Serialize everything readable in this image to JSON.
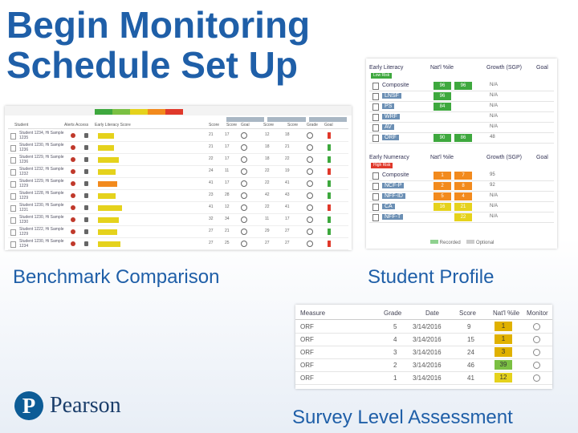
{
  "title_line1": "Begin Monitoring",
  "title_line2": "Schedule Set Up",
  "captions": {
    "benchmark": "Benchmark Comparison",
    "profile": "Student Profile",
    "survey": "Survey Level Assessment"
  },
  "brand": "Pearson",
  "colors": {
    "title": "#1f5fa8",
    "green": "#3ea83e",
    "yellow": "#e5d21c",
    "orange": "#f28a1d",
    "red": "#e0392b"
  },
  "benchmark": {
    "columns": [
      "Student ",
      "Alerts",
      "Access",
      "Early Literacy Score",
      "Score",
      "Score",
      "Goal",
      "Score",
      "Score",
      "Grade",
      "Goal"
    ],
    "rows": [
      {
        "name": "Student 1234, Hi Sample 1235",
        "a": "21",
        "b": "17",
        "c": "12",
        "d": "18"
      },
      {
        "name": "Student 1230, Hi Sample 1236",
        "a": "21",
        "b": "17",
        "c": "18",
        "d": "21"
      },
      {
        "name": "Student 1229, Hi Sample 1236",
        "a": "22",
        "b": "17",
        "c": "18",
        "d": "22"
      },
      {
        "name": "Student 1232, Hi Sample 1232",
        "a": "24",
        "b": "11",
        "c": "22",
        "d": "19"
      },
      {
        "name": "Student 1229, Hi Sample 1229",
        "a": "41",
        "b": "17",
        "c": "22",
        "d": "41"
      },
      {
        "name": "Student 1228, Hi Sample 1229",
        "a": "23",
        "b": "28",
        "c": "42",
        "d": "43"
      },
      {
        "name": "Student 1230, Hi Sample 1231",
        "a": "41",
        "b": "12",
        "c": "22",
        "d": "41"
      },
      {
        "name": "Student 1230, Hi Sample 1230",
        "a": "32",
        "b": "34",
        "c": "11",
        "d": "17"
      },
      {
        "name": "Student 1222, Hi Sample 1229",
        "a": "27",
        "b": "21",
        "c": "29",
        "d": "27"
      },
      {
        "name": "Student 1230, Hi Sample 1234",
        "a": "27",
        "b": "25",
        "c": "27",
        "d": "27"
      }
    ]
  },
  "profile": {
    "lit_header": [
      "Early Literacy",
      "Nat'l %ile",
      "Growth (SGP)",
      "Goal"
    ],
    "lit_pill": "Low Risk",
    "lit_rows": [
      {
        "label": "Composite",
        "v1": "96",
        "v2": "96",
        "g": "N/A"
      },
      {
        "label": "LNSF",
        "v1": "96",
        "v2": "",
        "g": "N/A"
      },
      {
        "label": "PS",
        "v1": "84",
        "v2": "",
        "g": "N/A"
      },
      {
        "label": "WRF",
        "v1": "",
        "v2": "",
        "g": "N/A"
      },
      {
        "label": "AV",
        "v1": "",
        "v2": "",
        "g": "N/A"
      },
      {
        "label": "ORF",
        "v1": "90",
        "v2": "86",
        "g": "48"
      }
    ],
    "num_header": [
      "Early Numeracy",
      "Nat'l %ile",
      "Growth (SGP)",
      "Goal"
    ],
    "num_pill": "High Risk",
    "num_rows": [
      {
        "label": "Composite",
        "v1": "1",
        "v2": "7",
        "g": "95"
      },
      {
        "label": "NCF-P",
        "v1": "2",
        "v2": "8",
        "g": "92"
      },
      {
        "label": "NFF-ID",
        "v1": "5",
        "v2": "4",
        "g": "N/A"
      },
      {
        "label": "CA",
        "v1": "16",
        "v2": "21",
        "g": "N/A"
      },
      {
        "label": "NFF-T",
        "v1": "",
        "v2": "22",
        "g": "N/A"
      }
    ],
    "legend": [
      "Recorded",
      "Optional"
    ]
  },
  "survey": {
    "headers": [
      "Measure",
      "Grade",
      "Date",
      "Score",
      "Nat'l %ile",
      "Monitor"
    ],
    "rows": [
      {
        "m": "ORF",
        "g": "5",
        "d": "3/14/2016",
        "s": "9",
        "p": "1",
        "c": "#e0b100"
      },
      {
        "m": "ORF",
        "g": "4",
        "d": "3/14/2016",
        "s": "15",
        "p": "1",
        "c": "#e0b100"
      },
      {
        "m": "ORF",
        "g": "3",
        "d": "3/14/2016",
        "s": "24",
        "p": "3",
        "c": "#e0b100"
      },
      {
        "m": "ORF",
        "g": "2",
        "d": "3/14/2016",
        "s": "46",
        "p": "39",
        "c": "#7bc043"
      },
      {
        "m": "ORF",
        "g": "1",
        "d": "3/14/2016",
        "s": "41",
        "p": "12",
        "c": "#e5d21c"
      }
    ]
  }
}
